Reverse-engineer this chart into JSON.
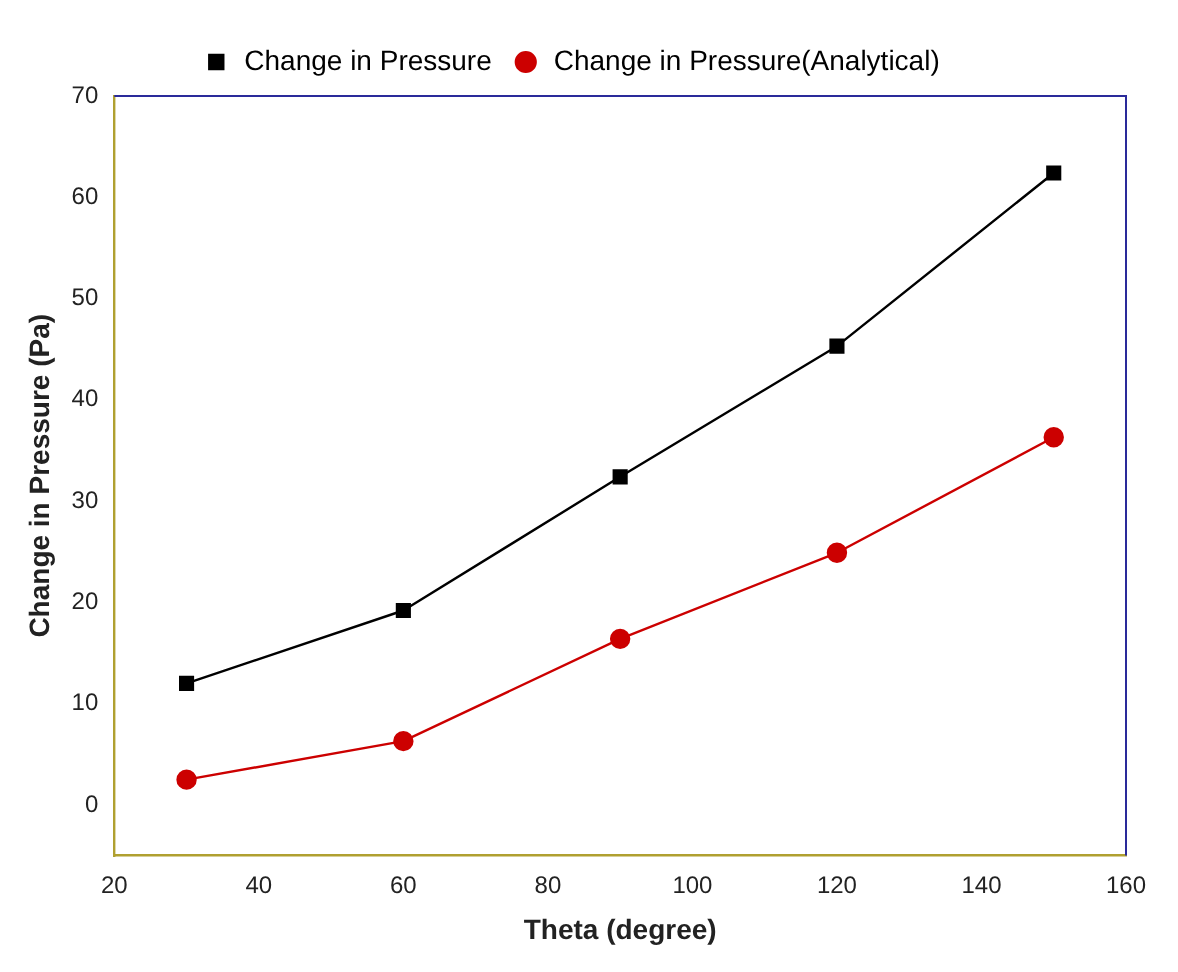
{
  "chart_data": {
    "type": "line",
    "xlabel": "Theta (degree)",
    "ylabel": "Change in Pressure (Pa)",
    "x": [
      30,
      60,
      90,
      120,
      150
    ],
    "series": [
      {
        "name": "Change in Pressure",
        "color": "#000000",
        "marker": "square",
        "values": [
          12,
          19.2,
          32.4,
          45.3,
          62.4
        ]
      },
      {
        "name": "Change in Pressure(Analytical)",
        "color": "#cc0000",
        "marker": "circle",
        "values": [
          2.5,
          6.3,
          16.4,
          24.9,
          36.3
        ]
      }
    ],
    "xlim": [
      20,
      160
    ],
    "xticks": [
      20,
      40,
      60,
      80,
      100,
      120,
      140,
      160
    ],
    "ylim": [
      -5,
      70
    ],
    "yticks": [
      0,
      10,
      20,
      30,
      40,
      50,
      60,
      70
    ],
    "grid": false,
    "legend": "top",
    "line_style": "solid"
  }
}
